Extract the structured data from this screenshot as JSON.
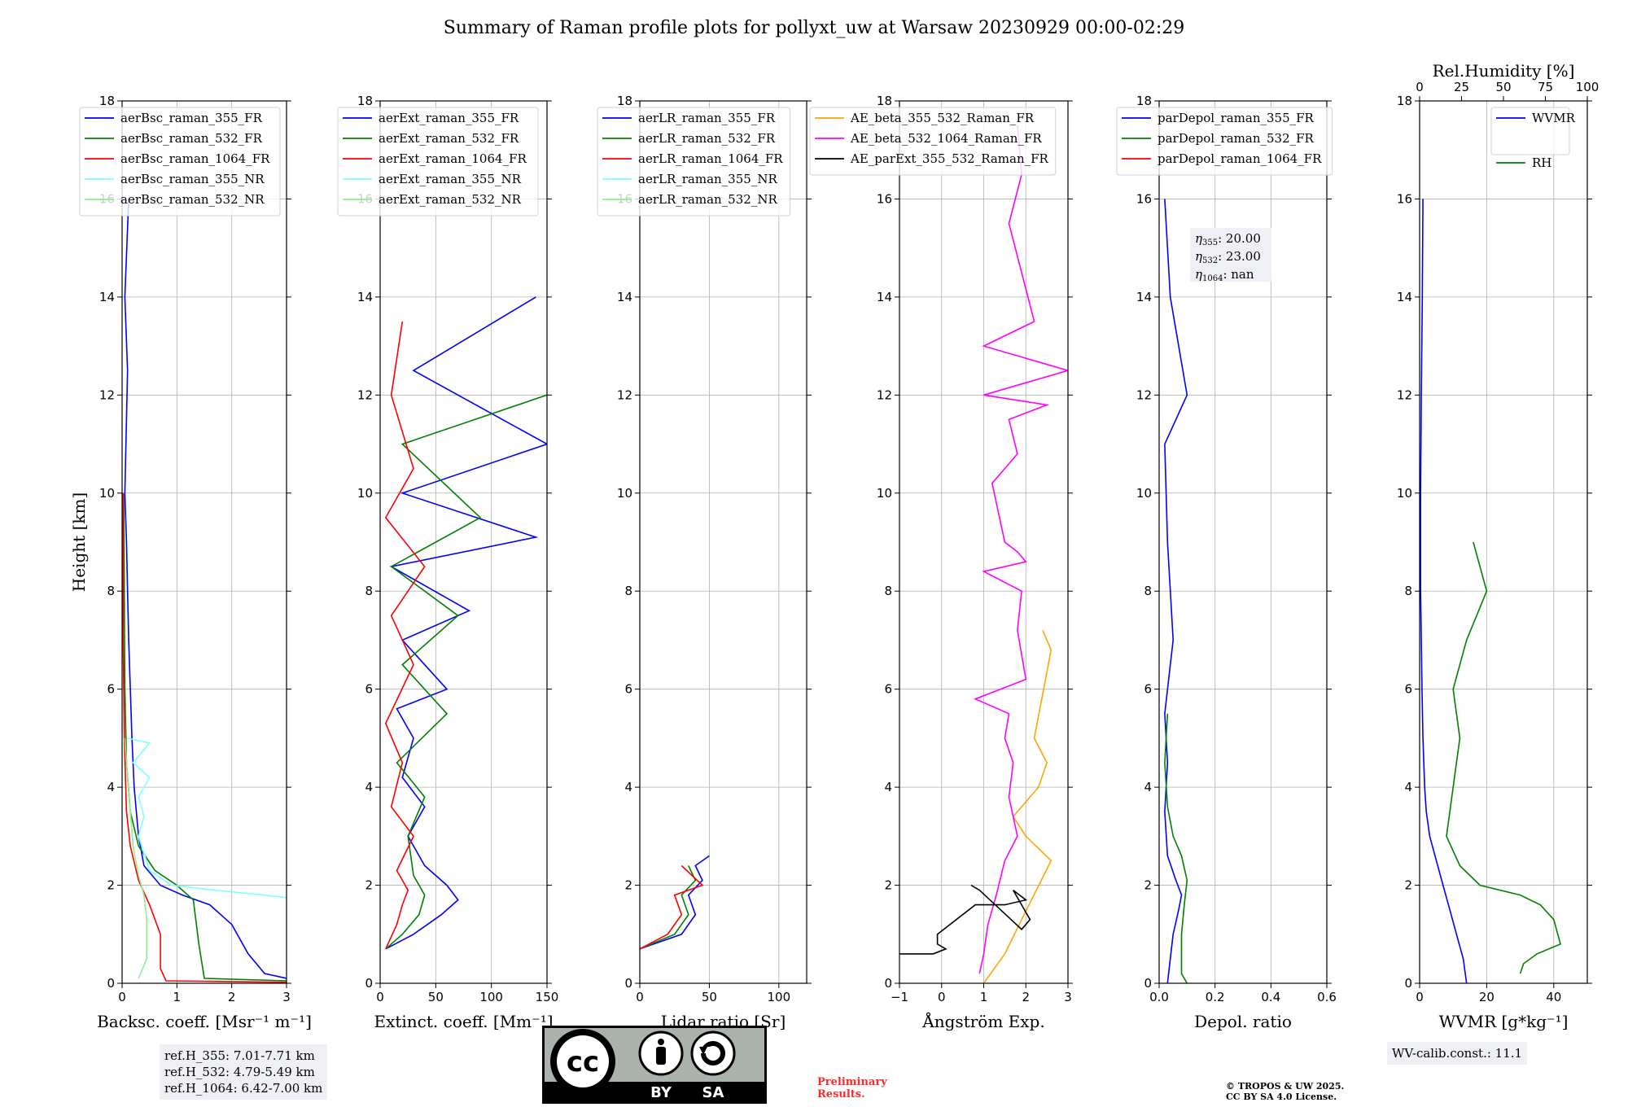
{
  "title": "Summary of Raman profile plots for pollyxt_uw at Warsaw 20230929 00:00-02:29",
  "ref_box": {
    "line1": "ref.H_355: 7.01-7.71 km",
    "line2": "ref.H_532: 4.79-5.49 km",
    "line3": "ref.H_1064: 6.42-7.00 km"
  },
  "wv_calib": "WV-calib.const.: 11.1",
  "preliminary": {
    "line1": "Preliminary",
    "line2": "Results."
  },
  "copyright": {
    "line1": "© TROPOS & UW 2025.",
    "line2": "CC BY SA 4.0 License."
  },
  "cc_badge": {
    "left": "BY",
    "right": "SA",
    "logo": "cc",
    "icon_by": "person-icon",
    "icon_sa": "share-alike-icon"
  },
  "colors": {
    "blue": "#0000ff",
    "green": "#008000",
    "red": "#ff0000",
    "cyan": "#7fffff",
    "lightgreen": "#90ee90",
    "orange": "#ffa500",
    "magenta": "#ff00ff",
    "black": "#000000"
  },
  "chart_data": [
    {
      "type": "line",
      "name": "backscatter",
      "xlabel": "Backsc. coeff. [Msr⁻¹ m⁻¹]",
      "ylabel": "Height [km]",
      "xlim": [
        0,
        3
      ],
      "ylim": [
        0,
        18
      ],
      "xticks": [
        0,
        1,
        2,
        3
      ],
      "yticks": [
        0,
        2,
        4,
        6,
        8,
        10,
        12,
        14,
        16,
        18
      ],
      "grid": true,
      "legend": [
        "aerBsc_raman_355_FR",
        "aerBsc_raman_532_FR",
        "aerBsc_raman_1064_FR",
        "aerBsc_raman_355_NR",
        "aerBsc_raman_532_NR"
      ],
      "legend_colors": [
        "#0000ff",
        "#008000",
        "#ff0000",
        "#7fffff",
        "#90ee90"
      ],
      "series": [
        {
          "color": "#0000ff",
          "x": [
            3.0,
            2.6,
            2.3,
            2.0,
            1.6,
            1.1,
            0.7,
            0.4,
            0.3,
            0.22,
            0.18,
            0.15,
            0.12,
            0.1,
            0.08,
            0.05,
            0.1,
            0.05,
            0.12
          ],
          "y": [
            0.1,
            0.2,
            0.6,
            1.2,
            1.6,
            1.8,
            2.0,
            2.4,
            3.0,
            4.0,
            5.0,
            6.0,
            7.0,
            8.0,
            9.0,
            10.0,
            12.5,
            14.0,
            16.0
          ]
        },
        {
          "color": "#008000",
          "x": [
            3.0,
            1.5,
            1.4,
            1.3,
            1.0,
            0.6,
            0.3,
            0.15,
            0.08,
            0.05,
            0.04,
            0.03
          ],
          "y": [
            0.05,
            0.1,
            0.8,
            1.7,
            2.0,
            2.3,
            2.8,
            3.5,
            4.5,
            6.0,
            8.0,
            10.0
          ]
        },
        {
          "color": "#ff0000",
          "x": [
            3.0,
            0.8,
            0.7,
            0.7,
            0.5,
            0.3,
            0.15,
            0.08,
            0.04,
            0.02,
            0.02
          ],
          "y": [
            0.02,
            0.05,
            0.3,
            1.0,
            1.6,
            2.1,
            2.8,
            3.5,
            5.0,
            7.0,
            10.0
          ]
        },
        {
          "color": "#7fffff",
          "x": [
            3.0,
            1.7,
            0.9,
            0.5,
            0.3,
            0.4,
            0.3,
            0.5,
            0.2,
            0.5,
            0.1
          ],
          "y": [
            1.75,
            1.9,
            2.0,
            2.3,
            3.0,
            3.4,
            3.8,
            4.2,
            4.5,
            4.9,
            5.0
          ]
        },
        {
          "color": "#90ee90",
          "x": [
            0.3,
            0.45,
            0.45,
            0.4,
            0.3,
            0.2,
            0.15,
            0.1,
            0.05
          ],
          "y": [
            0.1,
            0.5,
            1.3,
            1.8,
            2.2,
            2.8,
            3.5,
            4.2,
            5.0
          ]
        }
      ]
    },
    {
      "type": "line",
      "name": "extinction",
      "xlabel": "Extinct. coeff. [Mm⁻¹]",
      "xlim": [
        0,
        150
      ],
      "ylim": [
        0,
        18
      ],
      "xticks": [
        0,
        50,
        100,
        150
      ],
      "yticks": [
        0,
        2,
        4,
        6,
        8,
        10,
        12,
        14,
        16,
        18
      ],
      "grid": true,
      "legend": [
        "aerExt_raman_355_FR",
        "aerExt_raman_532_FR",
        "aerExt_raman_1064_FR",
        "aerExt_raman_355_NR",
        "aerExt_raman_532_NR"
      ],
      "legend_colors": [
        "#0000ff",
        "#008000",
        "#ff0000",
        "#7fffff",
        "#90ee90"
      ],
      "series": [
        {
          "color": "#0000ff",
          "x": [
            5,
            30,
            55,
            70,
            60,
            40,
            25,
            40,
            20,
            30,
            15,
            60,
            20,
            80,
            10,
            140,
            20,
            150,
            30,
            140
          ],
          "y": [
            0.7,
            1.0,
            1.4,
            1.7,
            2.0,
            2.4,
            3.0,
            3.6,
            4.2,
            5.0,
            5.6,
            6.0,
            7.0,
            7.6,
            8.5,
            9.1,
            10.0,
            11.0,
            12.5,
            14.0
          ]
        },
        {
          "color": "#008000",
          "x": [
            5,
            20,
            35,
            40,
            30,
            25,
            40,
            15,
            60,
            20,
            70,
            10,
            90,
            20,
            150
          ],
          "y": [
            0.7,
            1.0,
            1.4,
            1.8,
            2.2,
            3.0,
            3.8,
            4.5,
            5.5,
            6.5,
            7.5,
            8.5,
            9.5,
            11.0,
            12.0
          ]
        },
        {
          "color": "#ff0000",
          "x": [
            5,
            15,
            20,
            25,
            15,
            30,
            10,
            20,
            5,
            30,
            10,
            40,
            5,
            30,
            10,
            20
          ],
          "y": [
            0.7,
            1.2,
            1.6,
            1.9,
            2.3,
            3.0,
            3.6,
            4.5,
            5.3,
            6.5,
            7.5,
            8.5,
            9.5,
            10.5,
            12.0,
            13.5
          ]
        }
      ]
    },
    {
      "type": "line",
      "name": "lidar-ratio",
      "xlabel": "Lidar ratio [Sr]",
      "xlim": [
        0,
        120
      ],
      "ylim": [
        0,
        18
      ],
      "xticks": [
        0,
        50,
        100
      ],
      "yticks": [
        0,
        2,
        4,
        6,
        8,
        10,
        12,
        14,
        16,
        18
      ],
      "grid": true,
      "legend": [
        "aerLR_raman_355_FR",
        "aerLR_raman_532_FR",
        "aerLR_raman_1064_FR",
        "aerLR_raman_355_NR",
        "aerLR_raman_532_NR"
      ],
      "legend_colors": [
        "#0000ff",
        "#008000",
        "#ff0000",
        "#7fffff",
        "#90ee90"
      ],
      "series": [
        {
          "color": "#0000ff",
          "x": [
            0,
            30,
            40,
            35,
            45,
            40,
            50
          ],
          "y": [
            0.7,
            1.0,
            1.4,
            1.8,
            2.1,
            2.4,
            2.6
          ]
        },
        {
          "color": "#008000",
          "x": [
            0,
            25,
            35,
            30,
            40,
            35
          ],
          "y": [
            0.7,
            1.0,
            1.4,
            1.8,
            2.1,
            2.4
          ]
        },
        {
          "color": "#ff0000",
          "x": [
            0,
            20,
            30,
            25,
            45,
            30
          ],
          "y": [
            0.7,
            1.0,
            1.4,
            1.8,
            2.0,
            2.4
          ]
        }
      ]
    },
    {
      "type": "line",
      "name": "angstrom",
      "xlabel": "Ångström Exp.",
      "xlim": [
        -1,
        3
      ],
      "ylim": [
        0,
        18
      ],
      "xticks": [
        -1,
        0,
        1,
        2,
        3
      ],
      "yticks": [
        0,
        2,
        4,
        6,
        8,
        10,
        12,
        14,
        16,
        18
      ],
      "grid": true,
      "legend": [
        "AE_beta_355_532_Raman_FR",
        "AE_beta_532_1064_Raman_FR",
        "AE_parExt_355_532_Raman_FR"
      ],
      "legend_colors": [
        "#ffa500",
        "#ff00ff",
        "#000000"
      ],
      "series": [
        {
          "color": "#ffa500",
          "x": [
            1.0,
            1.5,
            1.9,
            2.6,
            2.0,
            1.7,
            2.3,
            2.5,
            2.2,
            2.6,
            2.4
          ],
          "y": [
            0.0,
            0.6,
            1.3,
            2.5,
            3.0,
            3.4,
            4.0,
            4.5,
            5.0,
            6.8,
            7.2
          ]
        },
        {
          "color": "#ff00ff",
          "x": [
            0.9,
            1.0,
            1.1,
            1.3,
            1.5,
            1.8,
            1.6,
            1.7,
            1.5,
            1.6,
            0.8,
            2.0,
            1.8,
            1.9,
            1.0,
            2.0,
            1.8,
            1.5,
            1.2,
            1.8,
            1.6,
            2.5,
            1.0,
            3.0,
            1.0,
            2.2,
            1.6,
            1.9,
            1.8
          ],
          "y": [
            0.2,
            0.6,
            1.2,
            1.8,
            2.5,
            3.0,
            3.8,
            4.5,
            5.0,
            5.5,
            5.8,
            6.2,
            7.2,
            8.0,
            8.4,
            8.6,
            8.8,
            9.0,
            10.2,
            10.8,
            11.5,
            11.8,
            12.0,
            12.5,
            13.0,
            13.5,
            15.5,
            16.5,
            17.5
          ]
        },
        {
          "color": "#000000",
          "x": [
            -1.0,
            -0.2,
            0.1,
            -0.1,
            -0.1,
            0.8,
            1.5,
            2.0,
            1.7,
            2.1,
            1.9,
            0.9,
            0.7
          ],
          "y": [
            0.6,
            0.6,
            0.7,
            0.8,
            1.0,
            1.6,
            1.6,
            1.7,
            1.9,
            1.3,
            1.1,
            1.9,
            2.0
          ]
        }
      ]
    },
    {
      "type": "line",
      "name": "depol",
      "xlabel": "Depol. ratio",
      "xlim": [
        0,
        0.6
      ],
      "ylim": [
        0,
        18
      ],
      "xticks": [
        0.0,
        0.2,
        0.4,
        0.6
      ],
      "yticks": [
        0,
        2,
        4,
        6,
        8,
        10,
        12,
        14,
        16,
        18
      ],
      "grid": true,
      "legend": [
        "parDepol_raman_355_FR",
        "parDepol_raman_532_FR",
        "parDepol_raman_1064_FR"
      ],
      "legend_colors": [
        "#0000ff",
        "#008000",
        "#ff0000"
      ],
      "annotation": {
        "eta355": "20.00",
        "eta532": "23.00",
        "eta1064": "nan"
      },
      "series": [
        {
          "color": "#0000ff",
          "x": [
            0.03,
            0.04,
            0.05,
            0.07,
            0.08,
            0.06,
            0.03,
            0.02,
            0.03,
            0.02,
            0.05,
            0.03,
            0.02,
            0.1,
            0.04,
            0.02
          ],
          "y": [
            0.0,
            0.5,
            1.0,
            1.5,
            1.8,
            2.1,
            2.6,
            3.5,
            4.5,
            5.5,
            7.0,
            9.0,
            11.0,
            12.0,
            14.0,
            16.0
          ]
        },
        {
          "color": "#008000",
          "x": [
            0.1,
            0.08,
            0.08,
            0.09,
            0.1,
            0.08,
            0.05,
            0.03,
            0.02,
            0.03
          ],
          "y": [
            0.0,
            0.2,
            1.0,
            1.6,
            2.1,
            2.6,
            3.0,
            3.6,
            4.5,
            5.5
          ]
        }
      ]
    },
    {
      "type": "line",
      "name": "wvmr",
      "xlabel": "WVMR [g*kg⁻¹]",
      "xlim": [
        0,
        50
      ],
      "ylim": [
        0,
        18
      ],
      "xticks": [
        0,
        20,
        40
      ],
      "yticks": [
        0,
        2,
        4,
        6,
        8,
        10,
        12,
        14,
        16,
        18
      ],
      "top_axis": {
        "label": "Rel.Humidity [%]",
        "lim": [
          0,
          100
        ],
        "ticks": [
          0,
          25,
          50,
          75,
          100
        ]
      },
      "grid": true,
      "legend": [
        "WVMR",
        "RH"
      ],
      "legend_colors": [
        "#0000ff",
        "#008000"
      ],
      "series": [
        {
          "color": "#0000ff",
          "x": [
            14,
            13,
            11,
            9,
            7,
            5,
            3,
            2,
            1.5,
            1.0,
            0.7,
            0.5,
            0.3,
            0.3,
            0.5,
            0.8,
            1.0
          ],
          "y": [
            0.0,
            0.5,
            1.0,
            1.5,
            2.0,
            2.5,
            3.0,
            3.5,
            4.0,
            5.0,
            6.0,
            7.0,
            8.0,
            10.0,
            12.0,
            14.0,
            16.0
          ]
        },
        {
          "color": "#008000",
          "x": [
            30,
            31,
            35,
            42,
            40,
            36,
            30,
            18,
            12,
            8,
            10,
            12,
            10,
            14,
            20,
            16
          ],
          "y": [
            0.2,
            0.4,
            0.6,
            0.8,
            1.3,
            1.6,
            1.8,
            2.0,
            2.4,
            3.0,
            4.0,
            5.0,
            6.0,
            7.0,
            8.0,
            9.0
          ]
        }
      ]
    }
  ]
}
